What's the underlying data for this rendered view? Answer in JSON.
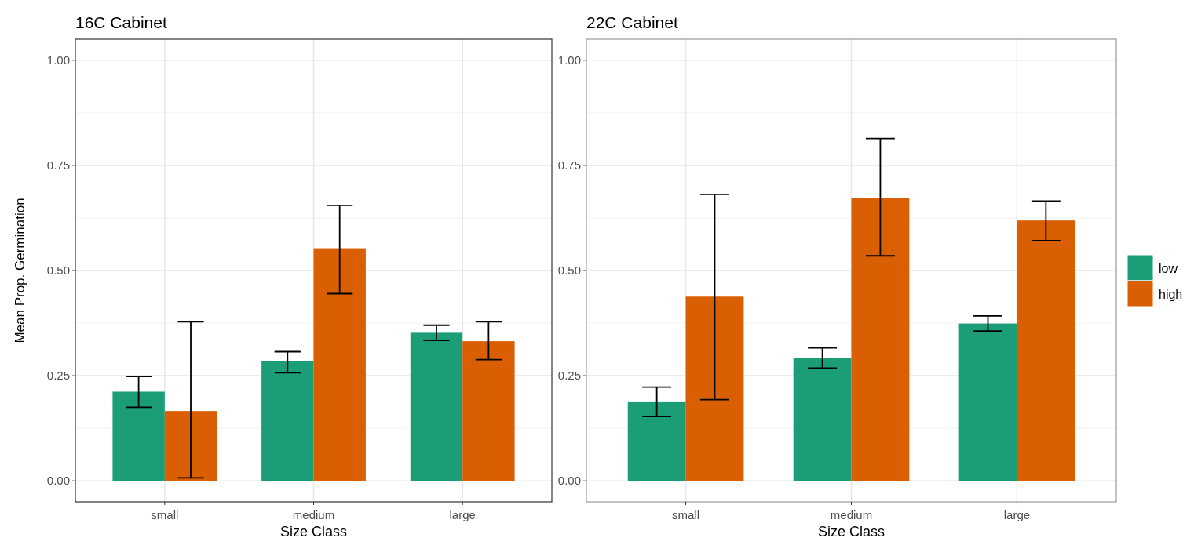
{
  "chart_data": [
    {
      "type": "bar",
      "title": "16C Cabinet",
      "xlabel": "Size Class",
      "ylabel": "Mean Prop. Germination",
      "categories": [
        "small",
        "medium",
        "large"
      ],
      "ylim": [
        -0.05,
        1.05
      ],
      "yticks": [
        {
          "value": 0,
          "label": "0.00"
        },
        {
          "value": 0.25,
          "label": "0.25"
        },
        {
          "value": 0.5,
          "label": "0.50"
        },
        {
          "value": 0.75,
          "label": "0.75"
        },
        {
          "value": 1,
          "label": "1.00"
        }
      ],
      "grid": true,
      "series": [
        {
          "color": "#1b9e77",
          "values": [
            0.212,
            0.285,
            0.352
          ],
          "errors": [
            [
              0.175,
              0.248
            ],
            [
              0.257,
              0.307
            ],
            [
              0.334,
              0.37
            ]
          ]
        },
        {
          "color": "#d95f02",
          "values": [
            0.166,
            0.553,
            0.332
          ],
          "errors": [
            [
              0.007,
              0.378
            ],
            [
              0.445,
              0.655
            ],
            [
              0.288,
              0.378
            ]
          ]
        }
      ]
    },
    {
      "type": "bar",
      "title": "22C Cabinet",
      "xlabel": "Size Class",
      "categories": [
        "small",
        "medium",
        "large"
      ],
      "ylim": [
        -0.05,
        1.05
      ],
      "yticks": [
        {
          "value": 0,
          "label": "0.00"
        },
        {
          "value": 0.25,
          "label": "0.25"
        },
        {
          "value": 0.5,
          "label": "0.50"
        },
        {
          "value": 0.75,
          "label": "0.75"
        },
        {
          "value": 1,
          "label": "1.00"
        }
      ],
      "grid": true,
      "legend": "right",
      "series": [
        {
          "name": "low",
          "color": "#1b9e77",
          "values": [
            0.187,
            0.292,
            0.374
          ],
          "errors": [
            [
              0.153,
              0.223
            ],
            [
              0.268,
              0.316
            ],
            [
              0.356,
              0.392
            ]
          ]
        },
        {
          "name": "high",
          "color": "#d95f02",
          "values": [
            0.438,
            0.673,
            0.619
          ],
          "errors": [
            [
              0.193,
              0.681
            ],
            [
              0.535,
              0.814
            ],
            [
              0.571,
              0.665
            ]
          ]
        }
      ]
    }
  ]
}
